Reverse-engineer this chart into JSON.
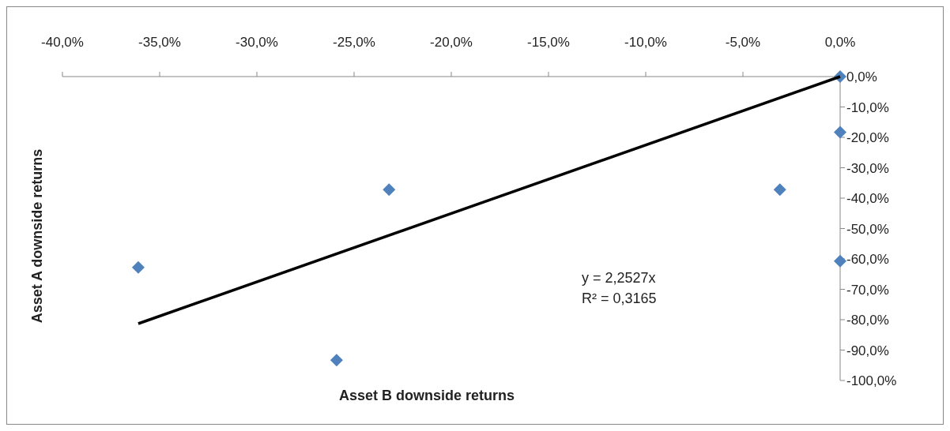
{
  "chart_data": {
    "type": "scatter",
    "xlabel": "Asset B downside returns",
    "ylabel": "Asset A downside returns",
    "x": [
      0,
      0,
      -3.1,
      0,
      -23.2,
      -36.1,
      -25.9
    ],
    "series": [
      {
        "color": "#4f81bd",
        "marker": "diamond",
        "values": [
          0,
          -18.3,
          -37.2,
          -60.7,
          -37.2,
          -62.8,
          -93.3
        ]
      },
      {
        "type": "line",
        "color": "#000000",
        "marker": "none",
        "x": [
          -36.1,
          0
        ],
        "values": [
          -81.3,
          0
        ]
      }
    ],
    "xlim": [
      -40,
      0
    ],
    "xticks": [
      {
        "value": -40,
        "label": "-40,0%"
      },
      {
        "value": -35,
        "label": "-35,0%"
      },
      {
        "value": -30,
        "label": "-30,0%"
      },
      {
        "value": -25,
        "label": "-25,0%"
      },
      {
        "value": -20,
        "label": "-20,0%"
      },
      {
        "value": -15,
        "label": "-15,0%"
      },
      {
        "value": -10,
        "label": "-10,0%"
      },
      {
        "value": -5,
        "label": "-5,0%"
      },
      {
        "value": 0,
        "label": "0,0%"
      }
    ],
    "ylim": [
      -100,
      0
    ],
    "yticks": [
      {
        "value": 0,
        "label": "0,0%"
      },
      {
        "value": -10,
        "label": "-10,0%"
      },
      {
        "value": -20,
        "label": "-20,0%"
      },
      {
        "value": -30,
        "label": "-30,0%"
      },
      {
        "value": -40,
        "label": "-40,0%"
      },
      {
        "value": -50,
        "label": "-50,0%"
      },
      {
        "value": -60,
        "label": "-60,0%"
      },
      {
        "value": -70,
        "label": "-70,0%"
      },
      {
        "value": -80,
        "label": "-80,0%"
      },
      {
        "value": -90,
        "label": "-90,0%"
      },
      {
        "value": -100,
        "label": "-100,0%"
      }
    ],
    "annotations": [
      "y = 2,2527x",
      "R² = 0,3165"
    ],
    "grid": false,
    "legend": false
  }
}
